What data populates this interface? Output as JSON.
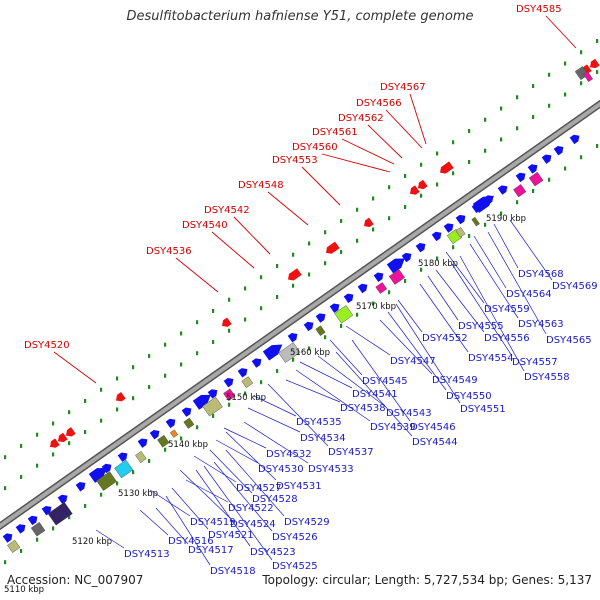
{
  "title": "Desulfitobacterium hafniense Y51, complete genome",
  "footer": {
    "accession": "Accession: NC_007907",
    "topology": "Topology: circular; Length: 5,727,534 bp; Genes: 5,137"
  },
  "scale_labels": [
    "5110 kbp",
    "5120 kbp",
    "5130 kbp",
    "5140 kbp",
    "5150 kbp",
    "5160 kbp",
    "5170 kbp",
    "5180 kbp",
    "5190 kbp"
  ],
  "reverse_gene_labels": [
    "DSY4520",
    "DSY4536",
    "DSY4540",
    "DSY4542",
    "DSY4548",
    "DSY4553",
    "DSY4560",
    "DSY4561",
    "DSY4562",
    "DSY4566",
    "DSY4567",
    "DSY4585"
  ],
  "forward_gene_labels": [
    "DSY4513",
    "DSY4516",
    "DSY4517",
    "DSY4518",
    "DSY4519",
    "DSY4521",
    "DSY4522",
    "DSY4523",
    "DSY4524",
    "DSY4525",
    "DSY4526",
    "DSY4527",
    "DSY4528",
    "DSY4529",
    "DSY4530",
    "DSY4531",
    "DSY4532",
    "DSY4533",
    "DSY4534",
    "DSY4535",
    "DSY4537",
    "DSY4538",
    "DSY4539",
    "DSY4541",
    "DSY4543",
    "DSY4544",
    "DSY4545",
    "DSY4546",
    "DSY4547",
    "DSY4549",
    "DSY4550",
    "DSY4551",
    "DSY4552",
    "DSY4554",
    "DSY4555",
    "DSY4556",
    "DSY4557",
    "DSY4558",
    "DSY4559",
    "DSY4563",
    "DSY4564",
    "DSY4565",
    "DSY4568",
    "DSY4569"
  ],
  "colors": {
    "forward": "#1010ee",
    "reverse": "#ee1111",
    "backbone": "#888888",
    "tick": "#228822",
    "label_red": "#d40000",
    "label_blue": "#1a1acc",
    "magenta": "#ee1199",
    "olive": "#667722",
    "lime": "#99ee22",
    "cyan": "#22ccee",
    "navy": "#332266",
    "khaki": "#bbbb77",
    "gray": "#bbbbbb"
  }
}
